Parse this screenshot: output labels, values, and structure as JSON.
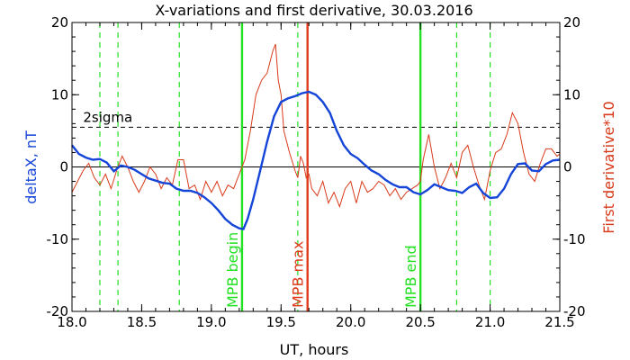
{
  "chart_data": {
    "type": "line",
    "title": "X-variations and first derivative, 30.03.2016",
    "xlabel": "UT, hours",
    "ylabel_left": "deltaX, nT",
    "ylabel_right": "First derivative*10",
    "xlim": [
      18.0,
      21.5
    ],
    "ylim_left": [
      -20,
      20
    ],
    "ylim_right": [
      -20,
      20
    ],
    "x_ticks": [
      18.0,
      18.5,
      19.0,
      19.5,
      20.0,
      20.5,
      21.0,
      21.5
    ],
    "x_tick_labels": [
      "18.0",
      "18.5",
      "19.0",
      "19.5",
      "20.0",
      "20.5",
      "21.0",
      "21.5"
    ],
    "y_ticks": [
      -20,
      -10,
      0,
      10,
      20
    ],
    "y_tick_labels": [
      "-20",
      "-10",
      "0",
      "10",
      "20"
    ],
    "grid": false,
    "zero_line": 0,
    "threshold": {
      "label": "2sigma",
      "value": 5.5
    },
    "events": [
      {
        "label": "MPB begin",
        "x": 19.22
      },
      {
        "label": "MPB max",
        "x": 19.69
      },
      {
        "label": "MPB end",
        "x": 20.5
      }
    ],
    "dashed_markers": [
      18.2,
      18.33,
      18.77,
      19.62,
      20.76,
      21.0
    ],
    "colors": {
      "deltaX": "#1444d8",
      "derivative": "#d83a1a",
      "event_begin_end": "#22e022",
      "event_max": "#e03a1a",
      "dashed_marker": "#22e022",
      "threshold": "#000000"
    },
    "series": [
      {
        "axis": "left",
        "x": [
          18.0,
          18.05,
          18.1,
          18.15,
          18.2,
          18.25,
          18.3,
          18.35,
          18.4,
          18.45,
          18.5,
          18.55,
          18.6,
          18.65,
          18.7,
          18.75,
          18.8,
          18.85,
          18.9,
          18.95,
          19.0,
          19.05,
          19.1,
          19.15,
          19.2,
          19.23,
          19.26,
          19.3,
          19.35,
          19.4,
          19.45,
          19.5,
          19.55,
          19.6,
          19.65,
          19.7,
          19.75,
          19.8,
          19.85,
          19.9,
          19.95,
          20.0,
          20.05,
          20.1,
          20.15,
          20.2,
          20.25,
          20.3,
          20.35,
          20.4,
          20.45,
          20.5,
          20.55,
          20.6,
          20.65,
          20.7,
          20.75,
          20.8,
          20.85,
          20.9,
          20.95,
          21.0,
          21.05,
          21.1,
          21.15,
          21.2,
          21.25,
          21.3,
          21.35,
          21.4,
          21.45,
          21.5
        ],
        "values": [
          3.0,
          1.8,
          1.3,
          1.0,
          1.1,
          0.6,
          -0.6,
          0.2,
          0.0,
          -0.4,
          -1.0,
          -1.6,
          -1.9,
          -2.2,
          -2.3,
          -3.0,
          -3.3,
          -3.3,
          -3.6,
          -4.2,
          -5.0,
          -6.0,
          -7.2,
          -8.0,
          -8.5,
          -8.6,
          -7.2,
          -4.5,
          -0.5,
          3.5,
          7.0,
          9.0,
          9.5,
          9.8,
          10.2,
          10.4,
          10.0,
          9.0,
          7.5,
          5.0,
          3.0,
          1.8,
          1.2,
          0.3,
          -0.5,
          -1.0,
          -1.8,
          -2.4,
          -2.8,
          -2.8,
          -3.5,
          -3.8,
          -3.2,
          -2.4,
          -2.8,
          -3.2,
          -3.3,
          -3.6,
          -2.8,
          -2.3,
          -3.6,
          -4.3,
          -4.2,
          -3.0,
          -1.0,
          0.4,
          0.5,
          -0.5,
          -0.6,
          0.4,
          0.9,
          1.0
        ]
      },
      {
        "axis": "right",
        "x": [
          18.0,
          18.04,
          18.08,
          18.12,
          18.16,
          18.2,
          18.24,
          18.28,
          18.32,
          18.36,
          18.4,
          18.44,
          18.48,
          18.52,
          18.56,
          18.6,
          18.64,
          18.68,
          18.72,
          18.76,
          18.8,
          18.84,
          18.88,
          18.92,
          18.96,
          19.0,
          19.04,
          19.08,
          19.12,
          19.16,
          19.2,
          19.24,
          19.28,
          19.32,
          19.36,
          19.4,
          19.44,
          19.46,
          19.48,
          19.5,
          19.52,
          19.56,
          19.6,
          19.62,
          19.64,
          19.66,
          19.68,
          19.7,
          19.72,
          19.76,
          19.8,
          19.84,
          19.88,
          19.92,
          19.96,
          20.0,
          20.04,
          20.08,
          20.12,
          20.16,
          20.2,
          20.24,
          20.28,
          20.32,
          20.36,
          20.4,
          20.44,
          20.48,
          20.5,
          20.52,
          20.56,
          20.6,
          20.64,
          20.68,
          20.72,
          20.76,
          20.8,
          20.84,
          20.88,
          20.92,
          20.96,
          21.0,
          21.04,
          21.08,
          21.12,
          21.16,
          21.2,
          21.24,
          21.28,
          21.32,
          21.36,
          21.4,
          21.44,
          21.48,
          21.5
        ],
        "values": [
          -3.5,
          -2.0,
          -0.5,
          0.5,
          -1.5,
          -2.5,
          -1.0,
          -3.0,
          -0.5,
          1.5,
          0.0,
          -2.0,
          -3.5,
          -2.0,
          0.0,
          -1.0,
          -3.0,
          -1.5,
          -2.5,
          1.0,
          1.0,
          -3.0,
          -2.5,
          -4.5,
          -2.0,
          -3.5,
          -2.0,
          -4.0,
          -2.5,
          -3.0,
          -1.0,
          1.0,
          5.0,
          10.0,
          12.0,
          13.0,
          16.0,
          17.0,
          12.0,
          10.0,
          5.0,
          2.0,
          -0.5,
          -1.5,
          1.5,
          0.5,
          -1.5,
          -1.0,
          -3.0,
          -4.0,
          -2.0,
          -5.0,
          -3.5,
          -5.5,
          -3.0,
          -2.0,
          -5.0,
          -2.0,
          -3.5,
          -3.0,
          -2.0,
          -2.5,
          -4.0,
          -3.0,
          -4.5,
          -3.5,
          -3.0,
          -2.5,
          -2.0,
          1.0,
          4.5,
          0.0,
          -3.0,
          -1.5,
          0.5,
          -1.5,
          2.0,
          3.0,
          0.0,
          -2.5,
          -4.5,
          -0.5,
          2.0,
          2.5,
          4.5,
          7.5,
          6.0,
          2.0,
          -1.0,
          -2.0,
          0.5,
          2.5,
          2.5,
          1.5,
          1.8
        ]
      }
    ]
  }
}
